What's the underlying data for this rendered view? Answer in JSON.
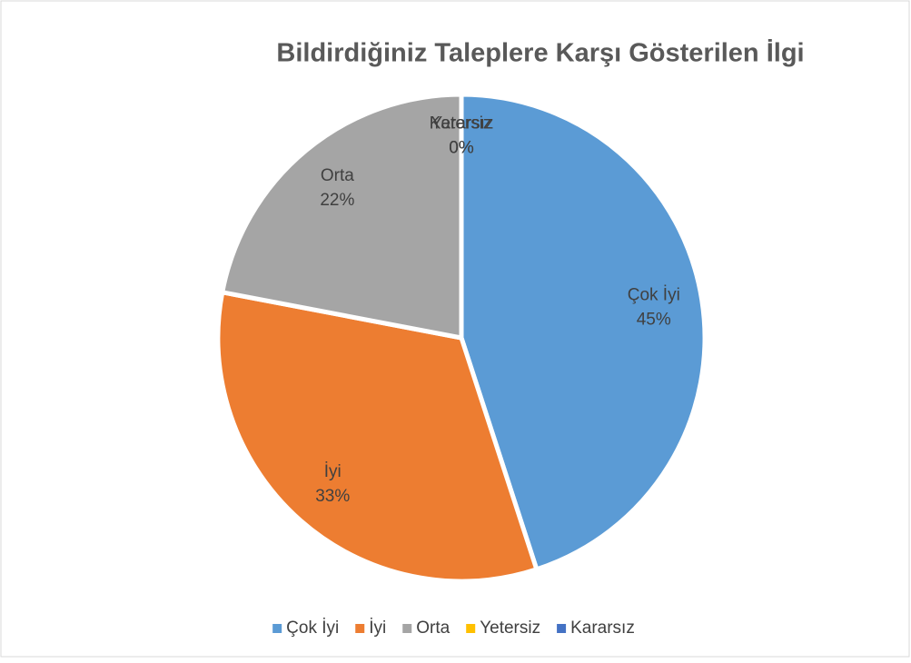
{
  "chart_data": {
    "type": "pie",
    "title": "Bildirdiğiniz Taleplere Karşı Gösterilen İlgi",
    "categories": [
      "Çok İyi",
      "İyi",
      "Orta",
      "Yetersiz",
      "Kararsız"
    ],
    "values": [
      45,
      33,
      22,
      0,
      0
    ],
    "value_labels": [
      "45%",
      "33%",
      "22%",
      "0%",
      "0%"
    ],
    "colors": [
      "#5b9bd5",
      "#ed7d31",
      "#a5a5a5",
      "#ffc000",
      "#4472c4"
    ],
    "legend": "bottom"
  }
}
